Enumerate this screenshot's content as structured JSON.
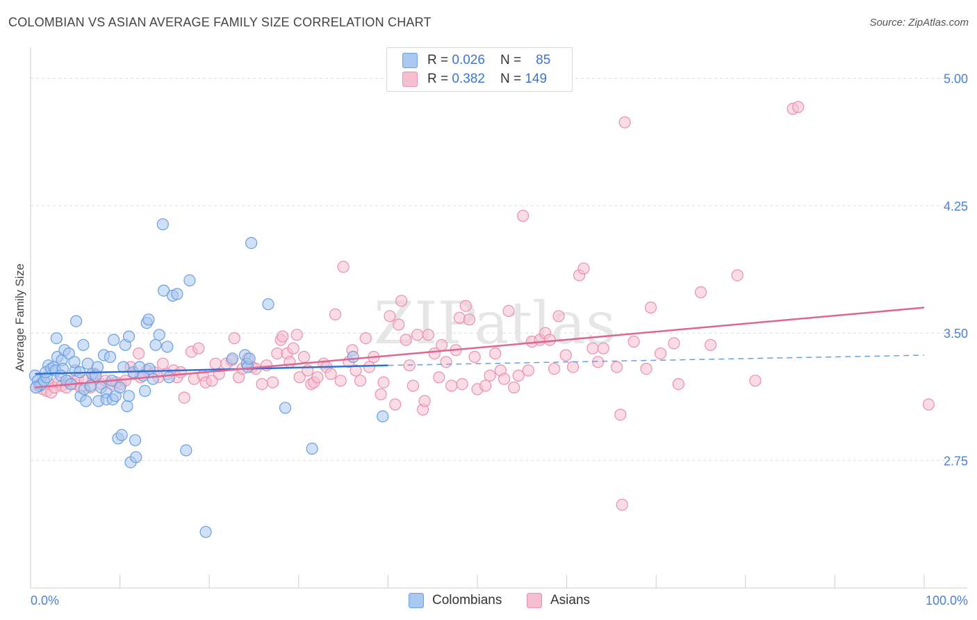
{
  "title": "COLOMBIAN VS ASIAN AVERAGE FAMILY SIZE CORRELATION CHART",
  "source": "Source: ZipAtlas.com",
  "watermark": "ZIPatlas",
  "legend": {
    "rows": [
      {
        "r_label": "R =",
        "r_value": "0.026",
        "n_label": "N =",
        "n_value": "85"
      },
      {
        "r_label": "R =",
        "r_value": "0.382",
        "n_label": "N =",
        "n_value": "149"
      }
    ]
  },
  "bottom_legend": {
    "colombians": "Colombians",
    "asians": "Asians"
  },
  "colors": {
    "blue_fill": "#a9c8f0",
    "blue_stroke": "#6a9ee0",
    "blue_line": "#3070d0",
    "pink_fill": "#f6bfd0",
    "pink_stroke": "#ea8fae",
    "pink_line": "#e0658f",
    "tick_text": "#4a7fd4",
    "grid": "#dddddd"
  },
  "chart_data": {
    "type": "scatter",
    "xlabel": "",
    "ylabel": "Average Family Size",
    "xlim": [
      0,
      100
    ],
    "ylim": [
      2.0,
      5.1
    ],
    "x_tick_labels": [
      "0.0%",
      "100.0%"
    ],
    "y_ticks": [
      2.75,
      3.5,
      4.25,
      5.0
    ],
    "y_tick_labels": [
      "2.75",
      "3.50",
      "4.25",
      "5.00"
    ],
    "grid": true,
    "legend_position": "top-center",
    "series": [
      {
        "name": "Colombians",
        "regression": {
          "x": [
            0.5,
            40
          ],
          "y": [
            3.26,
            3.31
          ],
          "dashed_to_x": 100,
          "dashed_end_y": 3.37
        },
        "points": [
          [
            0.5,
            3.25
          ],
          [
            0.8,
            3.22
          ],
          [
            1.0,
            3.19
          ],
          [
            1.2,
            3.2
          ],
          [
            0.6,
            3.18
          ],
          [
            1.5,
            3.22
          ],
          [
            1.8,
            3.24
          ],
          [
            2.0,
            3.31
          ],
          [
            1.7,
            3.27
          ],
          [
            2.3,
            3.29
          ],
          [
            2.6,
            3.3
          ],
          [
            2.8,
            3.28
          ],
          [
            3.0,
            3.36
          ],
          [
            2.9,
            3.47
          ],
          [
            3.5,
            3.34
          ],
          [
            3.6,
            3.29
          ],
          [
            3.4,
            3.25
          ],
          [
            3.8,
            3.4
          ],
          [
            4.0,
            3.22
          ],
          [
            4.3,
            3.38
          ],
          [
            4.5,
            3.2
          ],
          [
            5.0,
            3.28
          ],
          [
            4.9,
            3.33
          ],
          [
            5.1,
            3.57
          ],
          [
            5.5,
            3.27
          ],
          [
            5.6,
            3.13
          ],
          [
            5.9,
            3.43
          ],
          [
            6.0,
            3.17
          ],
          [
            6.2,
            3.1
          ],
          [
            6.4,
            3.32
          ],
          [
            6.7,
            3.19
          ],
          [
            6.9,
            3.26
          ],
          [
            7.3,
            3.25
          ],
          [
            7.5,
            3.3
          ],
          [
            7.6,
            3.1
          ],
          [
            7.9,
            3.18
          ],
          [
            8.2,
            3.37
          ],
          [
            8.5,
            3.15
          ],
          [
            8.5,
            3.11
          ],
          [
            8.9,
            3.36
          ],
          [
            9.1,
            3.22
          ],
          [
            9.2,
            3.11
          ],
          [
            9.3,
            3.46
          ],
          [
            9.5,
            3.13
          ],
          [
            9.8,
            2.88
          ],
          [
            10.0,
            3.18
          ],
          [
            10.2,
            2.9
          ],
          [
            10.4,
            3.3
          ],
          [
            10.6,
            3.43
          ],
          [
            10.8,
            3.07
          ],
          [
            11.0,
            3.48
          ],
          [
            11.0,
            3.13
          ],
          [
            11.2,
            2.74
          ],
          [
            11.5,
            3.27
          ],
          [
            11.8,
            2.77
          ],
          [
            11.7,
            2.87
          ],
          [
            12.2,
            3.3
          ],
          [
            12.6,
            3.25
          ],
          [
            12.8,
            3.16
          ],
          [
            13.0,
            3.56
          ],
          [
            13.2,
            3.58
          ],
          [
            13.3,
            3.29
          ],
          [
            13.7,
            3.23
          ],
          [
            14.0,
            3.43
          ],
          [
            14.4,
            3.49
          ],
          [
            14.8,
            4.14
          ],
          [
            14.9,
            3.75
          ],
          [
            15.3,
            3.42
          ],
          [
            15.5,
            3.24
          ],
          [
            15.9,
            3.72
          ],
          [
            16.4,
            3.73
          ],
          [
            17.4,
            2.81
          ],
          [
            17.8,
            3.81
          ],
          [
            19.6,
            2.33
          ],
          [
            22.6,
            3.35
          ],
          [
            24.0,
            3.37
          ],
          [
            24.2,
            3.32
          ],
          [
            24.3,
            3.3
          ],
          [
            24.5,
            3.35
          ],
          [
            24.7,
            4.03
          ],
          [
            26.6,
            3.67
          ],
          [
            28.5,
            3.06
          ],
          [
            31.5,
            2.82
          ],
          [
            36.1,
            3.36
          ],
          [
            39.4,
            3.01
          ]
        ]
      },
      {
        "name": "Asians",
        "regression": {
          "x": [
            0.5,
            100
          ],
          "y": [
            3.18,
            3.65
          ]
        },
        "points": [
          [
            0.6,
            3.18
          ],
          [
            1.0,
            3.19
          ],
          [
            1.4,
            3.17
          ],
          [
            1.8,
            3.16
          ],
          [
            2.1,
            3.2
          ],
          [
            2.3,
            3.15
          ],
          [
            2.7,
            3.18
          ],
          [
            3.1,
            3.21
          ],
          [
            3.5,
            3.19
          ],
          [
            4.0,
            3.18
          ],
          [
            4.2,
            3.22
          ],
          [
            4.6,
            3.2
          ],
          [
            5.0,
            3.2
          ],
          [
            5.3,
            3.23
          ],
          [
            5.6,
            3.18
          ],
          [
            6.1,
            3.22
          ],
          [
            6.7,
            3.18
          ],
          [
            7.0,
            3.24
          ],
          [
            7.2,
            3.26
          ],
          [
            7.9,
            3.2
          ],
          [
            8.4,
            3.22
          ],
          [
            9.0,
            3.2
          ],
          [
            9.6,
            3.21
          ],
          [
            10.1,
            3.2
          ],
          [
            10.6,
            3.22
          ],
          [
            11.2,
            3.3
          ],
          [
            11.6,
            3.26
          ],
          [
            12.1,
            3.38
          ],
          [
            12.3,
            3.24
          ],
          [
            13.0,
            3.28
          ],
          [
            13.8,
            3.27
          ],
          [
            14.3,
            3.24
          ],
          [
            14.8,
            3.32
          ],
          [
            15.3,
            3.26
          ],
          [
            16.0,
            3.28
          ],
          [
            16.4,
            3.24
          ],
          [
            16.8,
            3.27
          ],
          [
            17.2,
            3.12
          ],
          [
            18.0,
            3.39
          ],
          [
            18.3,
            3.23
          ],
          [
            18.8,
            3.41
          ],
          [
            19.3,
            3.25
          ],
          [
            19.6,
            3.21
          ],
          [
            20.3,
            3.22
          ],
          [
            20.7,
            3.32
          ],
          [
            21.1,
            3.26
          ],
          [
            21.9,
            3.32
          ],
          [
            22.5,
            3.34
          ],
          [
            22.8,
            3.47
          ],
          [
            23.3,
            3.24
          ],
          [
            23.7,
            3.29
          ],
          [
            24.3,
            3.35
          ],
          [
            24.8,
            3.3
          ],
          [
            25.2,
            3.29
          ],
          [
            25.9,
            3.2
          ],
          [
            26.4,
            3.31
          ],
          [
            27.1,
            3.21
          ],
          [
            27.6,
            3.38
          ],
          [
            28.0,
            3.46
          ],
          [
            28.2,
            3.48
          ],
          [
            28.7,
            3.38
          ],
          [
            29.0,
            3.33
          ],
          [
            29.4,
            3.41
          ],
          [
            29.8,
            3.49
          ],
          [
            30.1,
            3.24
          ],
          [
            30.6,
            3.36
          ],
          [
            31.0,
            3.28
          ],
          [
            31.4,
            3.2
          ],
          [
            31.7,
            3.21
          ],
          [
            32.1,
            3.24
          ],
          [
            32.8,
            3.32
          ],
          [
            33.1,
            3.3
          ],
          [
            33.6,
            3.26
          ],
          [
            34.1,
            3.61
          ],
          [
            34.7,
            3.22
          ],
          [
            35.0,
            3.89
          ],
          [
            35.6,
            3.33
          ],
          [
            36.0,
            3.4
          ],
          [
            36.4,
            3.28
          ],
          [
            36.9,
            3.22
          ],
          [
            37.5,
            3.47
          ],
          [
            37.9,
            3.3
          ],
          [
            38.4,
            3.36
          ],
          [
            39.2,
            3.14
          ],
          [
            39.5,
            3.21
          ],
          [
            40.2,
            3.6
          ],
          [
            40.8,
            3.08
          ],
          [
            41.2,
            3.55
          ],
          [
            41.5,
            3.69
          ],
          [
            42.0,
            3.46
          ],
          [
            42.4,
            3.31
          ],
          [
            42.8,
            3.19
          ],
          [
            43.3,
            3.49
          ],
          [
            43.9,
            3.05
          ],
          [
            44.1,
            3.1
          ],
          [
            44.5,
            3.49
          ],
          [
            45.2,
            3.38
          ],
          [
            45.7,
            3.24
          ],
          [
            46.0,
            3.43
          ],
          [
            46.5,
            3.33
          ],
          [
            47.1,
            3.19
          ],
          [
            47.6,
            3.4
          ],
          [
            48.0,
            3.59
          ],
          [
            48.3,
            3.2
          ],
          [
            48.7,
            3.66
          ],
          [
            49.1,
            3.58
          ],
          [
            49.7,
            3.36
          ],
          [
            50.0,
            3.17
          ],
          [
            50.9,
            3.19
          ],
          [
            51.4,
            3.25
          ],
          [
            52.0,
            3.38
          ],
          [
            52.6,
            3.28
          ],
          [
            53.0,
            3.23
          ],
          [
            53.5,
            3.63
          ],
          [
            54.1,
            3.18
          ],
          [
            54.6,
            3.25
          ],
          [
            55.1,
            4.19
          ],
          [
            55.7,
            3.28
          ],
          [
            56.1,
            3.45
          ],
          [
            57.0,
            3.46
          ],
          [
            57.6,
            3.5
          ],
          [
            58.1,
            3.46
          ],
          [
            58.6,
            3.29
          ],
          [
            59.1,
            3.6
          ],
          [
            59.9,
            3.37
          ],
          [
            60.7,
            3.3
          ],
          [
            61.4,
            3.84
          ],
          [
            61.9,
            3.88
          ],
          [
            62.9,
            3.41
          ],
          [
            63.5,
            3.33
          ],
          [
            64.1,
            3.41
          ],
          [
            65.6,
            3.3
          ],
          [
            66.0,
            3.02
          ],
          [
            66.5,
            4.74
          ],
          [
            67.5,
            3.45
          ],
          [
            68.9,
            3.29
          ],
          [
            69.4,
            3.65
          ],
          [
            70.5,
            3.38
          ],
          [
            72.0,
            3.44
          ],
          [
            72.5,
            3.2
          ],
          [
            75.0,
            3.74
          ],
          [
            76.1,
            3.43
          ],
          [
            79.1,
            3.84
          ],
          [
            81.1,
            3.22
          ],
          [
            85.3,
            4.82
          ],
          [
            85.9,
            4.83
          ],
          [
            100.5,
            3.08
          ],
          [
            66.2,
            2.49
          ]
        ]
      }
    ]
  }
}
